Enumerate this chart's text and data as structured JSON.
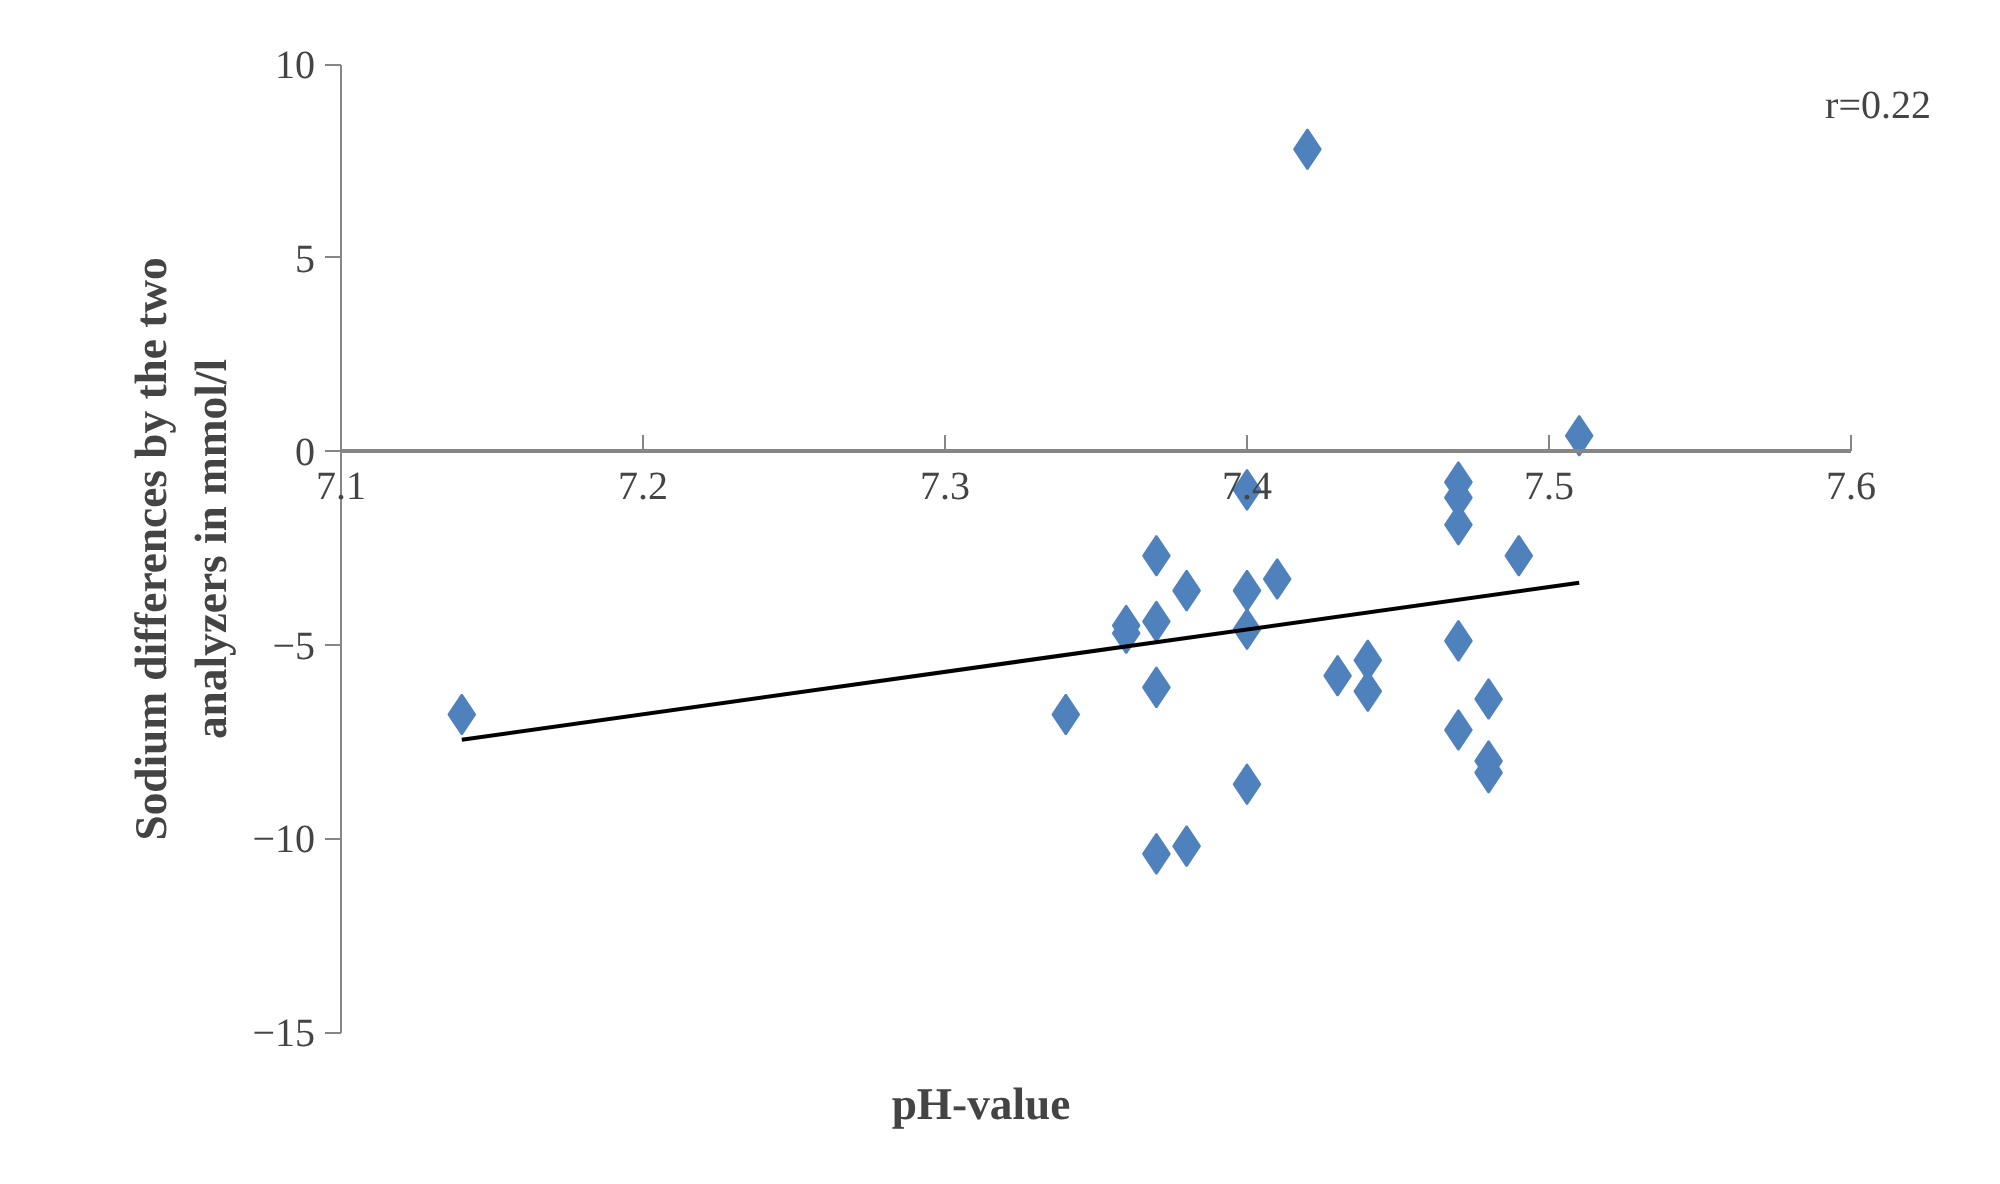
{
  "chart_data": {
    "type": "scatter",
    "xlabel": "pH-value",
    "ylabel": "Sodium differences by the two analyzers in mmol/l",
    "annotations": [
      "r=0.22"
    ],
    "xlim": [
      7.1,
      7.6
    ],
    "xticks": [
      7.1,
      7.2,
      7.3,
      7.4,
      7.5,
      7.6
    ],
    "ylim": [
      -15,
      10
    ],
    "yticks": [
      -15,
      -10,
      -5,
      0,
      5,
      10
    ],
    "grid": false,
    "series": [
      {
        "color": "#4f81bd",
        "marker": "diamond",
        "x": [
          7.14,
          7.34,
          7.42,
          7.51,
          7.4,
          7.47,
          7.47,
          7.47,
          7.49,
          7.37,
          7.38,
          7.41,
          7.4,
          7.4,
          7.36,
          7.36,
          7.37,
          7.44,
          7.47,
          7.43,
          7.44,
          7.37,
          7.48,
          7.47,
          7.48,
          7.48,
          7.4,
          7.37,
          7.38
        ],
        "values": [
          -6.8,
          -6.8,
          7.8,
          0.4,
          -1.0,
          -0.8,
          -1.2,
          -1.9,
          -2.7,
          -2.7,
          -3.6,
          -3.3,
          -3.6,
          -4.6,
          -4.5,
          -4.7,
          -4.4,
          -5.4,
          -4.9,
          -5.8,
          -6.2,
          -6.1,
          -6.4,
          -7.2,
          -8.0,
          -8.3,
          -8.6,
          -10.4,
          -10.2
        ]
      },
      {
        "type": "line",
        "color": "#000000",
        "x": [
          7.14,
          7.51
        ],
        "values": [
          -7.45,
          -3.4
        ]
      }
    ]
  }
}
